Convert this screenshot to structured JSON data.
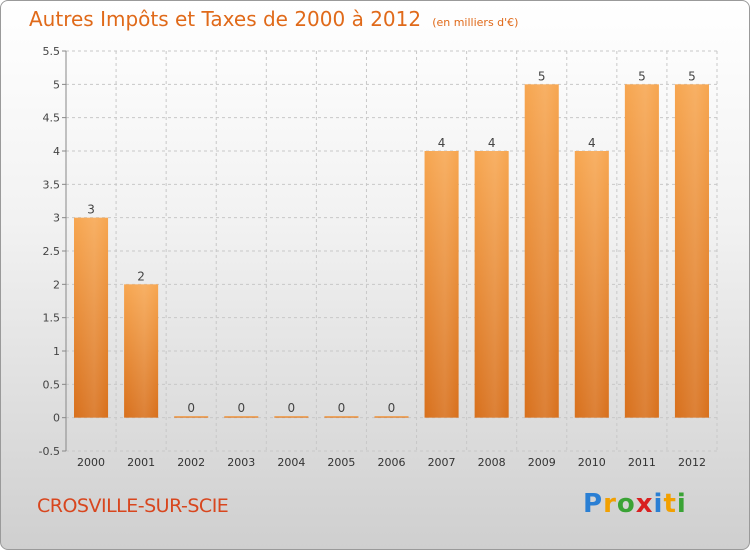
{
  "header": {
    "title": "Autres Impôts et Taxes de 2000 à 2012",
    "subtitle": "(en milliers d'€)"
  },
  "footer": {
    "commune": "CROSVILLE-SUR-SCIE"
  },
  "logo": {
    "letters": [
      "P",
      "r",
      "o",
      "x",
      "i",
      "t",
      "i"
    ],
    "colors": [
      "#2a7fd4",
      "#f2a000",
      "#3aa335",
      "#d92020",
      "#2a7fd4",
      "#f2a000",
      "#3aa335"
    ]
  },
  "chart_data": {
    "type": "bar",
    "title": "Autres Impôts et Taxes de 2000 à 2012",
    "categories": [
      "2000",
      "2001",
      "2002",
      "2003",
      "2004",
      "2005",
      "2006",
      "2007",
      "2008",
      "2009",
      "2010",
      "2011",
      "2012"
    ],
    "values": [
      3,
      2,
      0,
      0,
      0,
      0,
      0,
      4,
      4,
      5,
      4,
      5,
      5
    ],
    "data_labels": [
      "3",
      "2",
      "0",
      "0",
      "0",
      "0",
      "0",
      "4",
      "4",
      "5",
      "4",
      "5",
      "5"
    ],
    "ylim": [
      -0.5,
      5.5
    ],
    "yticks": [
      -0.5,
      0,
      0.5,
      1,
      1.5,
      2,
      2.5,
      3,
      3.5,
      4,
      4.5,
      5,
      5.5
    ],
    "ytick_labels": [
      "-0.5",
      "0",
      "0.5",
      "1",
      "1.5",
      "2",
      "2.5",
      "3",
      "3.5",
      "4",
      "4.5",
      "5",
      "5.5"
    ],
    "grid": true,
    "bar_color": "#f0922e"
  }
}
